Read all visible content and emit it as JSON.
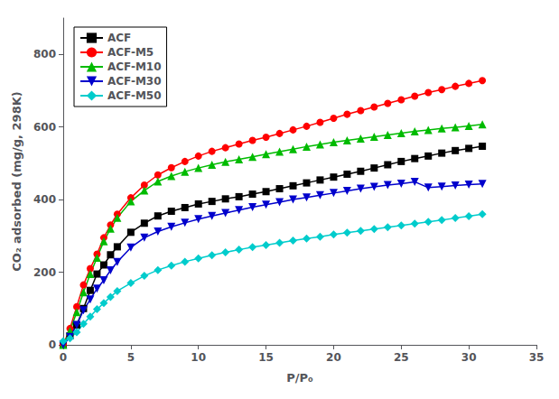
{
  "chart_data": {
    "type": "line",
    "xlabel": "P/P₀",
    "ylabel": "CO₂ adsorbed (mg/g, 298K)",
    "x": [
      0.0,
      0.5,
      1.0,
      1.5,
      2.0,
      2.5,
      3.0,
      3.5,
      4.0,
      5.0,
      6.0,
      7.0,
      8.0,
      9.0,
      10.0,
      11.0,
      12.0,
      13.0,
      14.0,
      15.0,
      16.0,
      17.0,
      18.0,
      19.0,
      20.0,
      21.0,
      22.0,
      23.0,
      24.0,
      25.0,
      26.0,
      27.0,
      28.0,
      29.0,
      30.0,
      31.0
    ],
    "series": [
      {
        "name": "ACF",
        "color": "#000000",
        "marker": "square",
        "values": [
          0,
          25,
          55,
          100,
          150,
          195,
          220,
          248,
          270,
          310,
          335,
          355,
          368,
          378,
          388,
          395,
          402,
          408,
          415,
          422,
          430,
          438,
          446,
          454,
          462,
          470,
          478,
          487,
          496,
          505,
          513,
          520,
          528,
          535,
          541,
          547
        ]
      },
      {
        "name": "ACF-M5",
        "color": "#ff0000",
        "marker": "circle",
        "values": [
          0,
          45,
          105,
          165,
          210,
          250,
          295,
          330,
          360,
          405,
          440,
          468,
          488,
          505,
          520,
          533,
          543,
          553,
          563,
          572,
          582,
          592,
          602,
          613,
          624,
          635,
          645,
          655,
          665,
          675,
          685,
          695,
          703,
          712,
          720,
          728
        ]
      },
      {
        "name": "ACF-M10",
        "color": "#00bb00",
        "marker": "triangle-up",
        "values": [
          0,
          38,
          90,
          145,
          195,
          240,
          285,
          320,
          350,
          395,
          425,
          450,
          465,
          477,
          487,
          496,
          504,
          511,
          518,
          525,
          532,
          539,
          546,
          552,
          558,
          563,
          568,
          573,
          578,
          583,
          588,
          592,
          596,
          599,
          603,
          607
        ]
      },
      {
        "name": "ACF-M30",
        "color": "#0000cc",
        "marker": "triangle-down",
        "values": [
          0,
          22,
          55,
          95,
          125,
          155,
          178,
          205,
          228,
          268,
          295,
          312,
          325,
          336,
          346,
          355,
          363,
          371,
          379,
          386,
          393,
          400,
          406,
          412,
          418,
          424,
          430,
          435,
          440,
          444,
          449,
          433,
          436,
          439,
          441,
          443
        ]
      },
      {
        "name": "ACF-M50",
        "color": "#00cccc",
        "marker": "diamond",
        "values": [
          10,
          18,
          35,
          58,
          78,
          98,
          115,
          132,
          148,
          170,
          190,
          206,
          218,
          229,
          238,
          247,
          255,
          262,
          269,
          275,
          281,
          287,
          293,
          298,
          304,
          309,
          314,
          319,
          324,
          329,
          334,
          339,
          344,
          349,
          354,
          360
        ]
      }
    ],
    "xlim": [
      0,
      35
    ],
    "xticks": [
      0,
      5,
      10,
      15,
      20,
      25,
      30,
      35
    ],
    "ylim": [
      0,
      900
    ],
    "yticks": [
      0,
      200,
      400,
      600,
      800
    ],
    "grid": false,
    "legend": "upper left"
  }
}
